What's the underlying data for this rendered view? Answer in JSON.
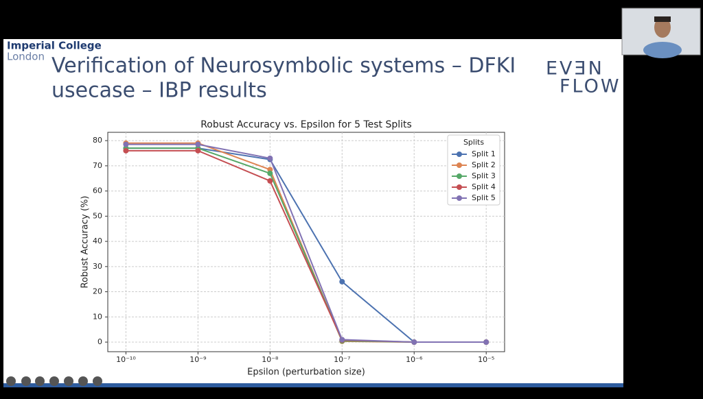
{
  "slide": {
    "institution": "Imperial College",
    "city": "London",
    "title_lines": [
      "Verification of Neurosymbolic systems – DFKI",
      "usecase – IBP results"
    ],
    "logo_lines": [
      "EVƎN",
      "FLOW"
    ]
  },
  "chart_data": {
    "type": "line",
    "title": "Robust Accuracy vs. Epsilon for 5 Test Splits",
    "x_label": "Epsilon (perturbation size)",
    "y_label": "Robust Accuracy (%)",
    "x": [
      1e-10,
      1e-09,
      1e-08,
      1e-07,
      1e-06,
      1e-05
    ],
    "xscale": "log",
    "xlim": [
      5.6e-11,
      1.8e-05
    ],
    "xticks": [
      {
        "value": 1e-10,
        "label": "10⁻¹⁰"
      },
      {
        "value": 1e-09,
        "label": "10⁻⁹"
      },
      {
        "value": 1e-08,
        "label": "10⁻⁸"
      },
      {
        "value": 1e-07,
        "label": "10⁻⁷"
      },
      {
        "value": 1e-06,
        "label": "10⁻⁶"
      },
      {
        "value": 1e-05,
        "label": "10⁻⁵"
      }
    ],
    "ylim": [
      -3.8,
      83.3
    ],
    "yticks": [
      0,
      10,
      20,
      30,
      40,
      50,
      60,
      70,
      80
    ],
    "grid": true,
    "legend_title": "Splits",
    "legend": "upper right",
    "series": [
      {
        "name": "Split 1",
        "color": "#4c72b0",
        "values": [
          77,
          77,
          72.5,
          24,
          0,
          0
        ]
      },
      {
        "name": "Split 2",
        "color": "#dd8452",
        "values": [
          79,
          79,
          68.5,
          0.3,
          0,
          0
        ]
      },
      {
        "name": "Split 3",
        "color": "#55a868",
        "values": [
          77,
          77,
          67,
          0.5,
          0,
          0
        ]
      },
      {
        "name": "Split 4",
        "color": "#c44e52",
        "values": [
          76,
          76,
          64,
          0.8,
          0,
          0
        ]
      },
      {
        "name": "Split 5",
        "color": "#8172b3",
        "values": [
          78.5,
          78.5,
          73,
          1,
          0,
          0
        ]
      }
    ]
  }
}
